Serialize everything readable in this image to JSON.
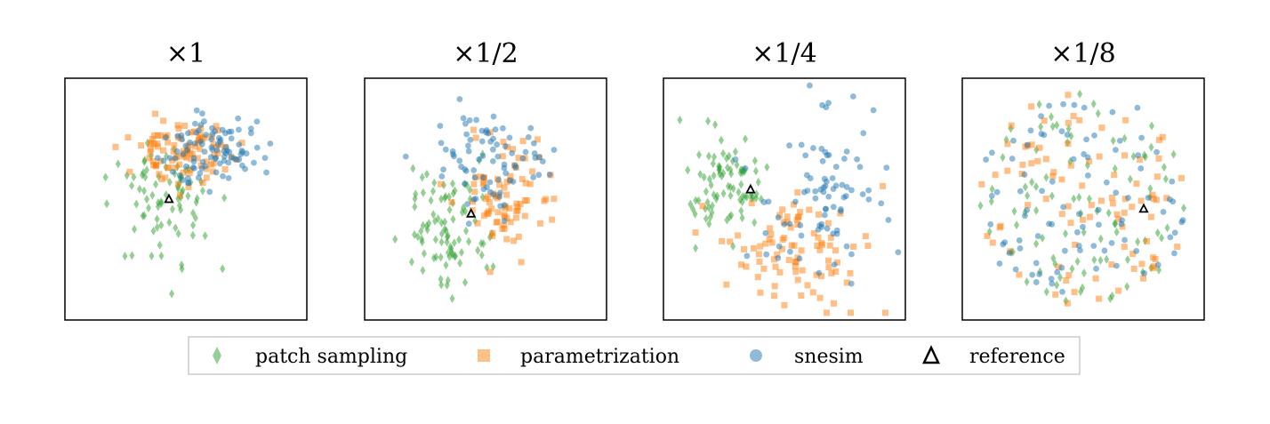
{
  "chart_data": [
    {
      "type": "scatter",
      "title": "×1",
      "reference": {
        "x": 0.43,
        "y": 0.5
      },
      "series": [
        {
          "name": "patch sampling",
          "cluster": {
            "cx": 0.42,
            "cy": 0.51,
            "sx": 0.1,
            "sy": 0.14,
            "n": 80,
            "seed": 11
          }
        },
        {
          "name": "parametrization",
          "cluster": {
            "cx": 0.48,
            "cy": 0.3,
            "sx": 0.1,
            "sy": 0.06,
            "n": 95,
            "seed": 23
          }
        },
        {
          "name": "snesim",
          "cluster": {
            "cx": 0.62,
            "cy": 0.3,
            "sx": 0.1,
            "sy": 0.07,
            "n": 95,
            "seed": 37
          }
        }
      ]
    },
    {
      "type": "scatter",
      "title": "×1/2",
      "reference": {
        "x": 0.44,
        "y": 0.56
      },
      "series": [
        {
          "name": "patch sampling",
          "cluster": {
            "cx": 0.36,
            "cy": 0.62,
            "sx": 0.1,
            "sy": 0.12,
            "n": 90,
            "seed": 41
          }
        },
        {
          "name": "parametrization",
          "cluster": {
            "cx": 0.58,
            "cy": 0.5,
            "sx": 0.1,
            "sy": 0.12,
            "n": 85,
            "seed": 53
          }
        },
        {
          "name": "snesim",
          "cluster": {
            "cx": 0.52,
            "cy": 0.31,
            "sx": 0.12,
            "sy": 0.11,
            "n": 80,
            "seed": 67
          }
        }
      ]
    },
    {
      "type": "scatter",
      "title": "×1/4",
      "reference": {
        "x": 0.36,
        "y": 0.46
      },
      "series": [
        {
          "name": "patch sampling",
          "cluster": {
            "cx": 0.26,
            "cy": 0.42,
            "sx": 0.09,
            "sy": 0.12,
            "n": 85,
            "seed": 71
          }
        },
        {
          "name": "parametrization",
          "cluster": {
            "cx": 0.55,
            "cy": 0.7,
            "sx": 0.15,
            "sy": 0.12,
            "n": 90,
            "seed": 83
          }
        },
        {
          "name": "snesim",
          "cluster": {
            "cx": 0.62,
            "cy": 0.48,
            "sx": 0.16,
            "sy": 0.18,
            "n": 85,
            "seed": 97
          }
        }
      ]
    },
    {
      "type": "scatter",
      "title": "×1/8",
      "reference": {
        "x": 0.75,
        "y": 0.54
      },
      "series": [
        {
          "name": "patch sampling",
          "cluster": {
            "ring": true,
            "cx": 0.5,
            "cy": 0.5,
            "r": 0.44,
            "n": 90,
            "seed": 101
          }
        },
        {
          "name": "parametrization",
          "cluster": {
            "ring": true,
            "cx": 0.5,
            "cy": 0.5,
            "r": 0.44,
            "n": 90,
            "seed": 113
          }
        },
        {
          "name": "snesim",
          "cluster": {
            "ring": true,
            "cx": 0.5,
            "cy": 0.5,
            "r": 0.44,
            "n": 90,
            "seed": 127
          }
        }
      ]
    }
  ],
  "legend": {
    "position": "bottom-center",
    "items": [
      {
        "label": "patch sampling",
        "marker": "diamond",
        "color": "#2ca02c"
      },
      {
        "label": "parametrization",
        "marker": "square",
        "color": "#ff7f0e"
      },
      {
        "label": "snesim",
        "marker": "circle",
        "color": "#1f77b4"
      },
      {
        "label": "reference",
        "marker": "triangle",
        "color": "#000000"
      }
    ]
  },
  "colors": {
    "patch sampling": "#2ca02c",
    "parametrization": "#ff7f0e",
    "snesim": "#1f77b4",
    "reference": "#000000"
  }
}
